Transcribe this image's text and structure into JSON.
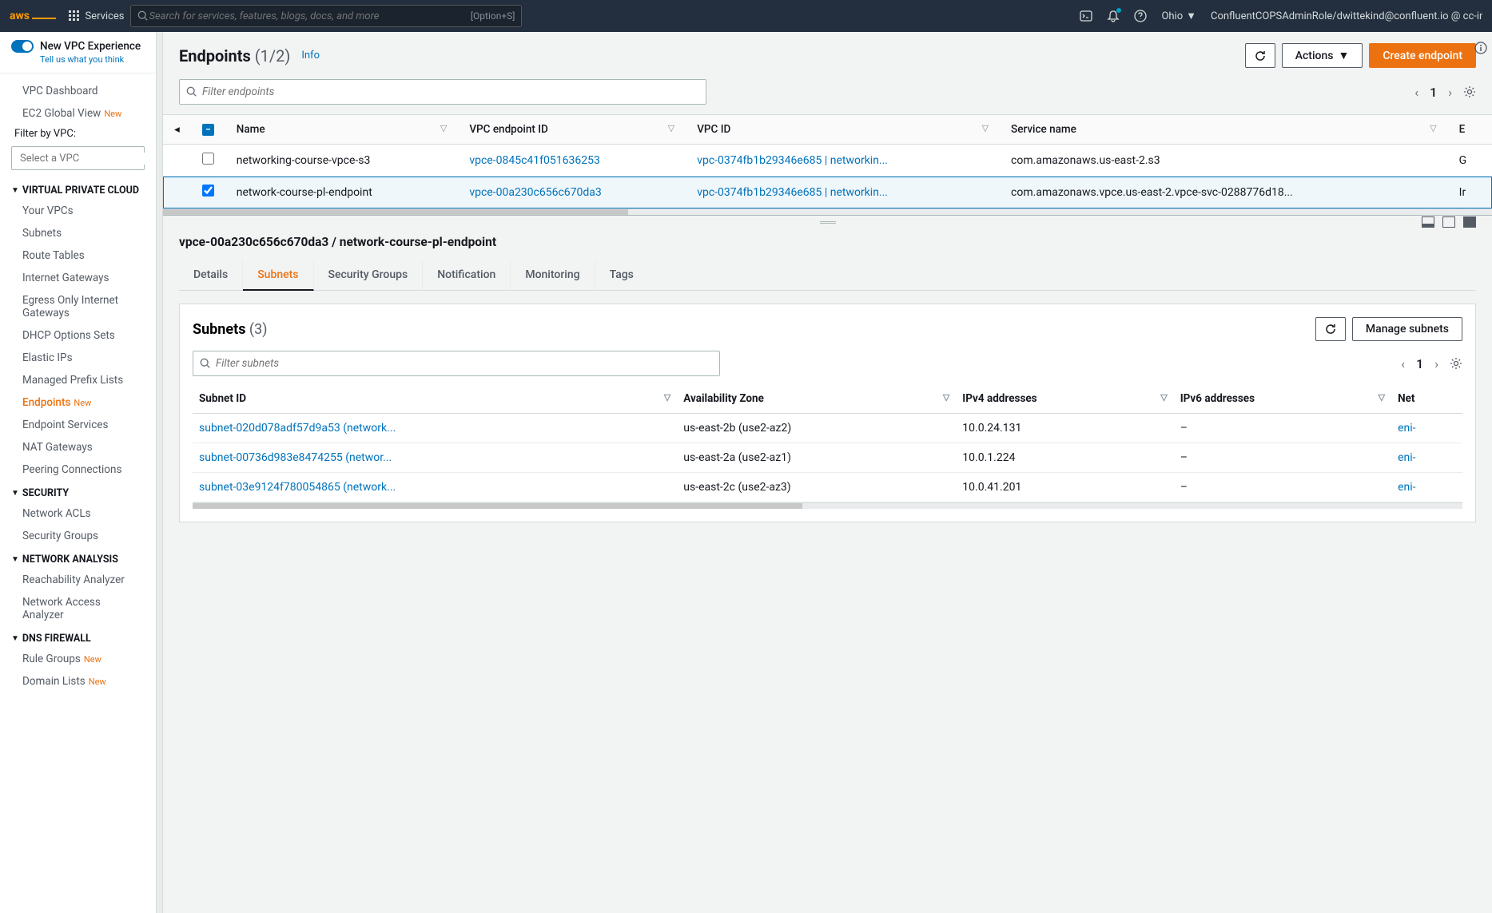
{
  "topnav": {
    "logo": "aws",
    "services": "Services",
    "search_placeholder": "Search for services, features, blogs, docs, and more",
    "search_shortcut": "[Option+S]",
    "region": "Ohio",
    "account": "ConfluentCOPSAdminRole/dwittekind@confluent.io @ cc-internal-..."
  },
  "sidebar": {
    "new_experience": "New VPC Experience",
    "tell_us": "Tell us what you think",
    "vpc_dashboard": "VPC Dashboard",
    "ec2_global": "EC2 Global View",
    "ec2_new": "New",
    "filter_label": "Filter by VPC:",
    "filter_placeholder": "Select a VPC",
    "vpc_header": "VIRTUAL PRIVATE CLOUD",
    "vpc_items": {
      "your_vpcs": "Your VPCs",
      "subnets": "Subnets",
      "route_tables": "Route Tables",
      "igw": "Internet Gateways",
      "egress_igw": "Egress Only Internet Gateways",
      "dhcp": "DHCP Options Sets",
      "elastic_ips": "Elastic IPs",
      "prefix_lists": "Managed Prefix Lists",
      "endpoints": "Endpoints",
      "endpoints_new": "New",
      "endpoint_services": "Endpoint Services",
      "nat": "NAT Gateways",
      "peering": "Peering Connections"
    },
    "security_header": "SECURITY",
    "security_items": {
      "nacls": "Network ACLs",
      "sgs": "Security Groups"
    },
    "analysis_header": "NETWORK ANALYSIS",
    "analysis_items": {
      "reachability": "Reachability Analyzer",
      "access": "Network Access Analyzer"
    },
    "dns_header": "DNS FIREWALL",
    "dns_items": {
      "rule_groups": "Rule Groups",
      "rule_groups_new": "New",
      "domain_lists": "Domain Lists",
      "domain_lists_new": "New"
    }
  },
  "page": {
    "title": "Endpoints",
    "count": "(1/2)",
    "info": "Info",
    "actions": "Actions",
    "create": "Create endpoint",
    "filter_placeholder": "Filter endpoints",
    "page_num": "1"
  },
  "table": {
    "headers": {
      "name": "Name",
      "endpoint_id": "VPC endpoint ID",
      "vpc_id": "VPC ID",
      "service_name": "Service name",
      "extra": "E"
    },
    "rows": [
      {
        "checked": false,
        "name": "networking-course-vpce-s3",
        "endpoint_id": "vpce-0845c41f051636253",
        "vpc_id": "vpc-0374fb1b29346e685 | networkin...",
        "service_name": "com.amazonaws.us-east-2.s3",
        "extra": "G"
      },
      {
        "checked": true,
        "name": "network-course-pl-endpoint",
        "endpoint_id": "vpce-00a230c656c670da3",
        "vpc_id": "vpc-0374fb1b29346e685 | networkin...",
        "service_name": "com.amazonaws.vpce.us-east-2.vpce-svc-0288776d18...",
        "extra": "Ir"
      }
    ],
    "scroll_thumb_pct": 35
  },
  "detail": {
    "title": "vpce-00a230c656c670da3 / network-course-pl-endpoint",
    "tabs": {
      "details": "Details",
      "subnets": "Subnets",
      "sg": "Security Groups",
      "notif": "Notification",
      "monitor": "Monitoring",
      "tags": "Tags"
    },
    "subnets": {
      "title": "Subnets",
      "count": "(3)",
      "manage": "Manage subnets",
      "filter_placeholder": "Filter subnets",
      "page_num": "1",
      "headers": {
        "subnet_id": "Subnet ID",
        "az": "Availability Zone",
        "ipv4": "IPv4 addresses",
        "ipv6": "IPv6 addresses",
        "net": "Net"
      },
      "rows": [
        {
          "subnet_id": "subnet-020d078adf57d9a53 (network...",
          "az": "us-east-2b (use2-az2)",
          "ipv4": "10.0.24.131",
          "ipv6": "–",
          "net": "eni-"
        },
        {
          "subnet_id": "subnet-00736d983e8474255 (networ...",
          "az": "us-east-2a (use2-az1)",
          "ipv4": "10.0.1.224",
          "ipv6": "–",
          "net": "eni-"
        },
        {
          "subnet_id": "subnet-03e9124f780054865 (network...",
          "az": "us-east-2c (use2-az3)",
          "ipv4": "10.0.41.201",
          "ipv6": "–",
          "net": "eni-"
        }
      ],
      "scroll_thumb_pct": 48
    }
  },
  "colors": {
    "primary_orange": "#ec7211",
    "link_blue": "#0073bb",
    "nav_bg": "#232f3e"
  }
}
